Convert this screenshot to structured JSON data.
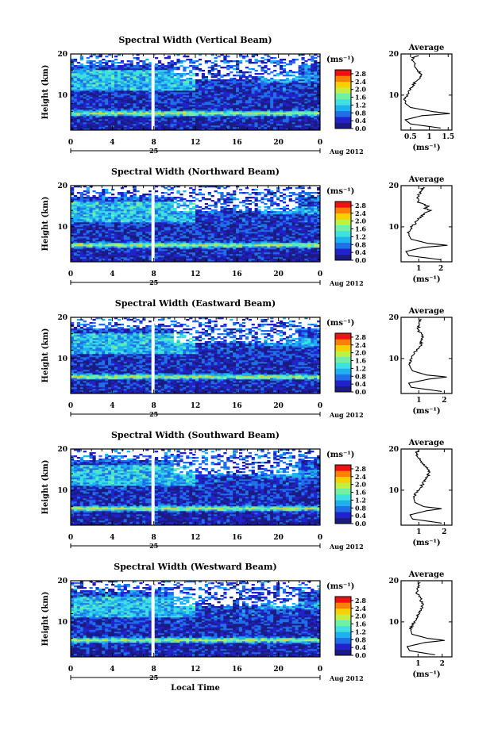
{
  "chart_data": {
    "type": "heatmap",
    "x_label": "Local Time",
    "x_ticks": [
      "0",
      "4",
      "8",
      "12",
      "16",
      "20",
      "0"
    ],
    "x_range": [
      0,
      24
    ],
    "date_day": "25",
    "date_month": "Aug 2012",
    "y_label": "Height (km)",
    "y_ticks": [
      "20",
      "10"
    ],
    "y_range": [
      1.5,
      20
    ],
    "colorbar_unit": "(ms⁻¹)",
    "colorbar_ticks": [
      "2.8",
      "2.4",
      "2.0",
      "1.6",
      "1.2",
      "0.8",
      "0.4",
      "0.0"
    ],
    "colorbar_range": [
      0,
      3.0
    ],
    "colormap": [
      "#1a1a80",
      "#2222cc",
      "#1f6fe8",
      "#1fb0f0",
      "#3fe0e0",
      "#70f0a0",
      "#c0f040",
      "#f8d000",
      "#ff8000",
      "#ee1111"
    ],
    "average_title": "Average",
    "average_unit": "(ms⁻¹)",
    "panels": [
      {
        "title": "Spectral Width (Vertical Beam)",
        "avg_xticks": [
          "0.5",
          "1",
          "1.5"
        ],
        "avg_xrange": [
          0.25,
          1.6
        ],
        "avg_profile": [
          [
            2,
            1.3
          ],
          [
            3,
            0.5
          ],
          [
            4,
            0.36
          ],
          [
            5,
            0.8
          ],
          [
            5.5,
            1.55
          ],
          [
            6,
            1.1
          ],
          [
            7,
            0.5
          ],
          [
            8,
            0.36
          ],
          [
            9,
            0.34
          ],
          [
            10,
            0.42
          ],
          [
            11,
            0.45
          ],
          [
            12,
            0.55
          ],
          [
            13,
            0.6
          ],
          [
            14,
            0.72
          ],
          [
            15,
            0.78
          ],
          [
            16,
            0.7
          ],
          [
            17,
            0.62
          ],
          [
            18,
            0.58
          ],
          [
            19,
            0.55
          ],
          [
            19.6,
            0.72
          ]
        ]
      },
      {
        "title": "Spectral Width (Northward Beam)",
        "avg_xticks": [
          "1",
          "2"
        ],
        "avg_xrange": [
          0.2,
          2.5
        ],
        "avg_profile": [
          [
            2,
            2.0
          ],
          [
            3,
            0.55
          ],
          [
            4,
            0.42
          ],
          [
            5,
            1.2
          ],
          [
            5.5,
            2.3
          ],
          [
            6,
            1.4
          ],
          [
            7,
            0.65
          ],
          [
            8,
            0.55
          ],
          [
            9,
            0.55
          ],
          [
            10,
            0.7
          ],
          [
            11,
            0.85
          ],
          [
            12,
            1.0
          ],
          [
            13,
            1.2
          ],
          [
            14,
            1.5
          ],
          [
            14.5,
            1.3
          ],
          [
            15,
            1.4
          ],
          [
            16,
            1.0
          ],
          [
            17,
            0.9
          ],
          [
            18,
            1.05
          ],
          [
            19,
            1.1
          ],
          [
            19.6,
            1.2
          ]
        ]
      },
      {
        "title": "Spectral Width (Eastward Beam)",
        "avg_xticks": [
          "1",
          "2"
        ],
        "avg_xrange": [
          0.3,
          2.3
        ],
        "avg_profile": [
          [
            2,
            1.9
          ],
          [
            3,
            0.7
          ],
          [
            4,
            0.6
          ],
          [
            5,
            1.4
          ],
          [
            5.5,
            2.1
          ],
          [
            6,
            1.3
          ],
          [
            7,
            0.75
          ],
          [
            8,
            0.65
          ],
          [
            9,
            0.62
          ],
          [
            10,
            0.7
          ],
          [
            11,
            0.8
          ],
          [
            12,
            0.9
          ],
          [
            13,
            1.05
          ],
          [
            14,
            1.1
          ],
          [
            15,
            1.15
          ],
          [
            16,
            1.1
          ],
          [
            17,
            0.95
          ],
          [
            18,
            1.0
          ],
          [
            19,
            1.05
          ],
          [
            19.6,
            1.1
          ]
        ]
      },
      {
        "title": "Spectral Width (Southward Beam)",
        "avg_xticks": [
          "1",
          "2"
        ],
        "avg_xrange": [
          0.3,
          2.3
        ],
        "avg_profile": [
          [
            2,
            1.9
          ],
          [
            3,
            0.75
          ],
          [
            4,
            0.65
          ],
          [
            5,
            1.3
          ],
          [
            5.5,
            1.9
          ],
          [
            6,
            1.2
          ],
          [
            7,
            0.85
          ],
          [
            8,
            0.8
          ],
          [
            9,
            0.85
          ],
          [
            10,
            1.0
          ],
          [
            11,
            1.1
          ],
          [
            12,
            1.2
          ],
          [
            13,
            1.3
          ],
          [
            14,
            1.4
          ],
          [
            15,
            1.35
          ],
          [
            16,
            1.25
          ],
          [
            17,
            1.1
          ],
          [
            18,
            0.95
          ],
          [
            19,
            0.9
          ],
          [
            19.6,
            0.95
          ]
        ]
      },
      {
        "title": "Spectral Width (Westward Beam)",
        "avg_xticks": [
          "1",
          "2"
        ],
        "avg_xrange": [
          0.3,
          2.4
        ],
        "avg_profile": [
          [
            2,
            1.7
          ],
          [
            3,
            0.65
          ],
          [
            4,
            0.55
          ],
          [
            5,
            1.3
          ],
          [
            5.5,
            2.1
          ],
          [
            6,
            1.4
          ],
          [
            7,
            0.75
          ],
          [
            8,
            0.7
          ],
          [
            9,
            0.75
          ],
          [
            10,
            0.85
          ],
          [
            11,
            0.95
          ],
          [
            12,
            1.05
          ],
          [
            13,
            1.1
          ],
          [
            14,
            1.2
          ],
          [
            15,
            1.15
          ],
          [
            16,
            1.1
          ],
          [
            17,
            0.95
          ],
          [
            18,
            0.95
          ],
          [
            19,
            1.05
          ],
          [
            19.6,
            1.1
          ]
        ]
      }
    ]
  }
}
